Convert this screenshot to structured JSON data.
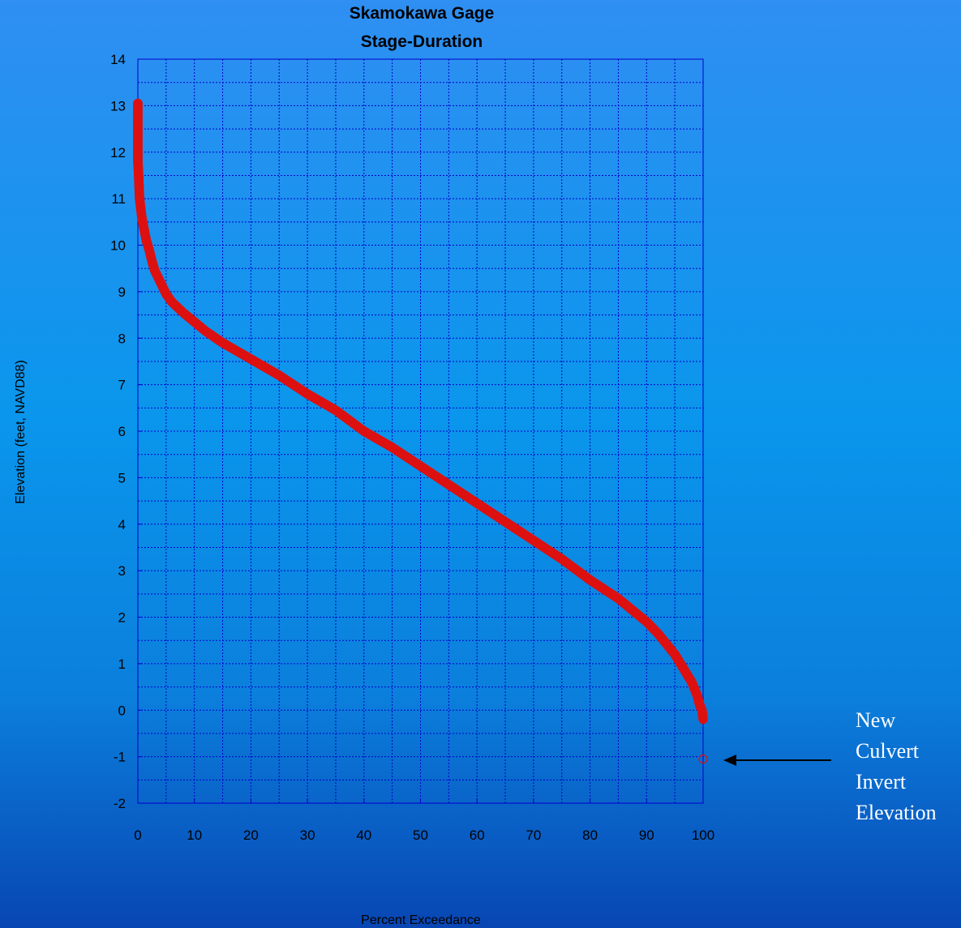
{
  "chart_data": {
    "type": "scatter",
    "title": [
      "Skamokawa Gage",
      "Stage-Duration"
    ],
    "xlabel": "Percent Exceedance",
    "ylabel": "Elevation (feet, NAVD88)",
    "xlim": [
      0,
      100
    ],
    "ylim": [
      -2,
      14
    ],
    "xticks": [
      "0",
      "10",
      "20",
      "30",
      "40",
      "50",
      "60",
      "70",
      "80",
      "90",
      "100"
    ],
    "yticks": [
      "-2",
      "-1",
      "0",
      "1",
      "2",
      "3",
      "4",
      "5",
      "6",
      "7",
      "8",
      "9",
      "10",
      "11",
      "12",
      "13",
      "14"
    ],
    "grid": true,
    "marker": "open-circle",
    "series_color": "#dd1111",
    "series": [
      {
        "x": [
          0,
          0,
          0,
          0,
          0,
          0,
          0,
          0,
          0.1,
          0.2,
          0.3,
          0.5,
          0.7,
          1,
          1.5,
          2,
          2.5,
          3,
          4,
          5,
          6,
          8,
          10,
          12,
          15,
          20,
          25,
          30,
          35,
          40,
          45,
          50,
          55,
          60,
          65,
          70,
          75,
          80,
          85,
          88,
          90,
          92,
          94,
          95,
          96,
          97,
          98,
          98.5,
          99,
          99.3,
          99.6,
          99.8,
          100,
          100
        ],
        "y": [
          13.05,
          12.8,
          12.6,
          12.4,
          12.2,
          12.0,
          11.9,
          11.8,
          11.6,
          11.3,
          11.0,
          10.8,
          10.6,
          10.4,
          10.1,
          9.9,
          9.65,
          9.45,
          9.2,
          8.95,
          8.78,
          8.55,
          8.35,
          8.15,
          7.9,
          7.55,
          7.2,
          6.8,
          6.45,
          6.0,
          5.65,
          5.25,
          4.85,
          4.45,
          4.05,
          3.65,
          3.25,
          2.8,
          2.4,
          2.1,
          1.9,
          1.65,
          1.35,
          1.2,
          1.0,
          0.8,
          0.6,
          0.45,
          0.3,
          0.15,
          0.05,
          0.0,
          -0.2,
          -1.05
        ]
      }
    ],
    "annotation": {
      "lines": [
        "New",
        "Culvert",
        "Invert",
        "Elevation"
      ],
      "points_to": {
        "x": 100,
        "y": -1
      }
    },
    "colors": {
      "grid": "#0000cc",
      "annotation_text": "#ffffff",
      "arrow": "#000000"
    }
  }
}
